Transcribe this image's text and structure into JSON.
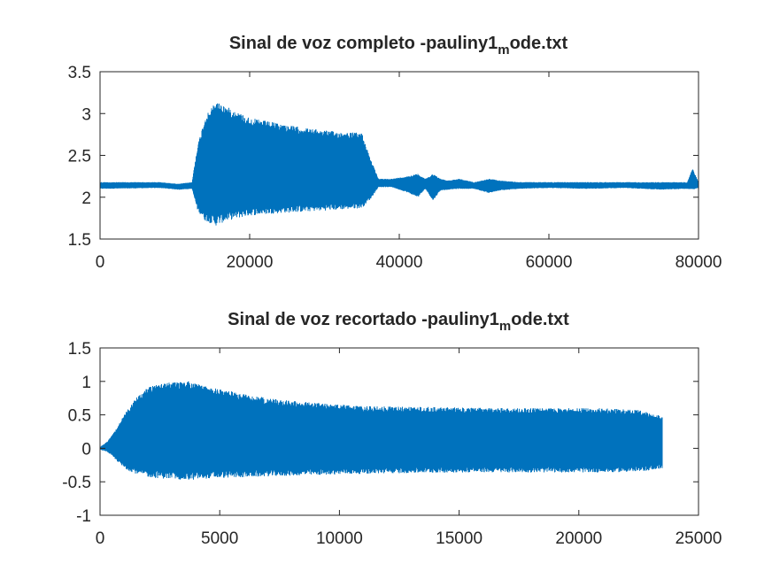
{
  "figure": {
    "background": "#ffffff",
    "line_color": "#0072BD",
    "axis_color": "#262626"
  },
  "chart_data": [
    {
      "type": "line",
      "title": "Sinal de voz completo -pauliny1",
      "title_subscript": "m",
      "title_suffix": "ode.txt",
      "xlabel": "",
      "ylabel": "",
      "xlim": [
        0,
        80000
      ],
      "ylim": [
        1.5,
        3.5
      ],
      "xticks": [
        0,
        20000,
        40000,
        60000,
        80000
      ],
      "xtick_labels": [
        "0",
        "20000",
        "40000",
        "60000",
        "80000"
      ],
      "yticks": [
        1.5,
        2,
        2.5,
        3,
        3.5
      ],
      "ytick_labels": [
        "1.5",
        "2",
        "2.5",
        "3",
        "3.5"
      ],
      "grid": false,
      "series": [
        {
          "color": "#0072BD",
          "envelope_x": [
            0,
            8000,
            10500,
            12300,
            13000,
            14000,
            15500,
            17000,
            20000,
            24000,
            28000,
            32000,
            35000,
            36200,
            37200,
            39000,
            41000,
            42500,
            43500,
            44500,
            45500,
            46500,
            48000,
            50000,
            52000,
            53500,
            56000,
            60000,
            65000,
            70000,
            75000,
            78500,
            79200,
            80000
          ],
          "envelope_upper": [
            2.18,
            2.18,
            2.16,
            2.18,
            2.6,
            2.95,
            3.15,
            3.08,
            2.95,
            2.88,
            2.82,
            2.78,
            2.77,
            2.45,
            2.22,
            2.22,
            2.25,
            2.28,
            2.22,
            2.28,
            2.22,
            2.2,
            2.22,
            2.18,
            2.22,
            2.2,
            2.18,
            2.18,
            2.18,
            2.18,
            2.18,
            2.18,
            2.34,
            2.18
          ],
          "envelope_lower": [
            2.1,
            2.11,
            2.09,
            2.1,
            1.85,
            1.72,
            1.66,
            1.72,
            1.78,
            1.81,
            1.83,
            1.85,
            1.87,
            1.98,
            2.12,
            2.12,
            2.06,
            2.0,
            2.1,
            1.96,
            2.08,
            2.09,
            2.1,
            2.1,
            2.05,
            2.08,
            2.1,
            2.11,
            2.1,
            2.11,
            2.09,
            2.1,
            2.09,
            2.11
          ]
        }
      ]
    },
    {
      "type": "line",
      "title": "Sinal de voz recortado -pauliny1",
      "title_subscript": "m",
      "title_suffix": "ode.txt",
      "xlabel": "",
      "ylabel": "",
      "xlim": [
        0,
        25000
      ],
      "ylim": [
        -1,
        1.5
      ],
      "xticks": [
        0,
        5000,
        10000,
        15000,
        20000,
        25000
      ],
      "xtick_labels": [
        "0",
        "5000",
        "10000",
        "15000",
        "20000",
        "25000"
      ],
      "yticks": [
        -1,
        -0.5,
        0,
        0.5,
        1,
        1.5
      ],
      "ytick_labels": [
        "-1",
        "-0.5",
        "0",
        "0.5",
        "1",
        "1.5"
      ],
      "grid": false,
      "series": [
        {
          "color": "#0072BD",
          "envelope_x": [
            0,
            300,
            600,
            1000,
            1500,
            2000,
            2500,
            3000,
            3700,
            4500,
            5500,
            7000,
            9000,
            11000,
            13000,
            15000,
            17000,
            19000,
            21000,
            22500,
            23500
          ],
          "envelope_upper": [
            0.02,
            0.1,
            0.25,
            0.5,
            0.75,
            0.92,
            1.0,
            0.98,
            1.01,
            0.92,
            0.85,
            0.75,
            0.68,
            0.63,
            0.62,
            0.61,
            0.6,
            0.6,
            0.6,
            0.57,
            0.48
          ],
          "envelope_lower": [
            -0.02,
            -0.05,
            -0.15,
            -0.3,
            -0.38,
            -0.43,
            -0.45,
            -0.46,
            -0.48,
            -0.45,
            -0.44,
            -0.42,
            -0.4,
            -0.38,
            -0.37,
            -0.36,
            -0.36,
            -0.36,
            -0.36,
            -0.35,
            -0.3
          ]
        }
      ]
    }
  ]
}
